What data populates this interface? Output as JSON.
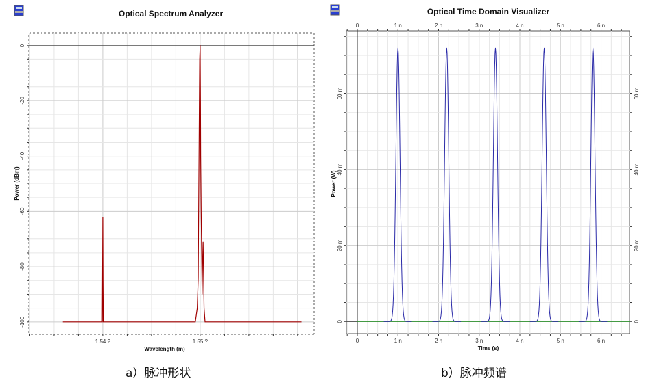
{
  "captions": {
    "left": "a）脉冲形状",
    "right": "b）脉冲频谱"
  },
  "chart_data": [
    {
      "type": "line",
      "title": "Optical Spectrum Analyzer",
      "xlabel": "Wavelength (m)",
      "ylabel": "Power (dBm)",
      "x_tick_labels": [
        "1.54 ?",
        "1.55 ?"
      ],
      "x_ticks": [
        1.54,
        1.55
      ],
      "y_ticks": [
        0,
        -20,
        -40,
        -60,
        -80,
        -100
      ],
      "y_tick_labels": [
        "0",
        "-20",
        "-40",
        "-60",
        "-80",
        "-100"
      ],
      "xlim": [
        1.5324,
        1.5617
      ],
      "ylim": [
        -104.5,
        4.5
      ],
      "grid": true,
      "color": "#a00000",
      "series": [
        {
          "x": [
            1.5359,
            1.53995,
            1.53998,
            1.54,
            1.54002,
            1.54005,
            1.5401,
            1.5495,
            1.5497,
            1.5498,
            1.5499,
            1.54995,
            1.55,
            1.55003,
            1.55005,
            1.5501,
            1.5502,
            1.55025,
            1.5503,
            1.5504,
            1.5505,
            1.5506,
            1.5604
          ],
          "y": [
            -100,
            -100,
            -78,
            -62,
            -85,
            -100,
            -100,
            -100,
            -95,
            -84,
            -30,
            -5,
            0,
            -20,
            -40,
            -60,
            -90,
            -78,
            -71,
            -95,
            -100,
            -100,
            -100
          ]
        }
      ]
    },
    {
      "type": "line",
      "title": "Optical Time Domain Visualizer",
      "xlabel": "Time (s)",
      "ylabel": "Power (W)",
      "x_ticks": [
        0,
        1,
        2,
        3,
        4,
        5,
        6
      ],
      "x_tick_labels": [
        "0",
        "1 n",
        "2 n",
        "3 n",
        "4 n",
        "5 n",
        "6 n"
      ],
      "y_ticks": [
        0,
        20,
        40,
        60
      ],
      "y_tick_labels": [
        "0",
        "20 m",
        "40 m",
        "60 m"
      ],
      "xlim": [
        -0.27,
        6.7
      ],
      "ylim": [
        -3.2,
        76.5
      ],
      "grid": true,
      "color": "#2a2aa8",
      "series": [
        {
          "pulse_centers_ns": [
            1.0,
            2.2,
            3.4,
            4.6,
            5.8
          ],
          "peak_mW": 72,
          "fwhm_ns": 0.12
        }
      ]
    }
  ]
}
